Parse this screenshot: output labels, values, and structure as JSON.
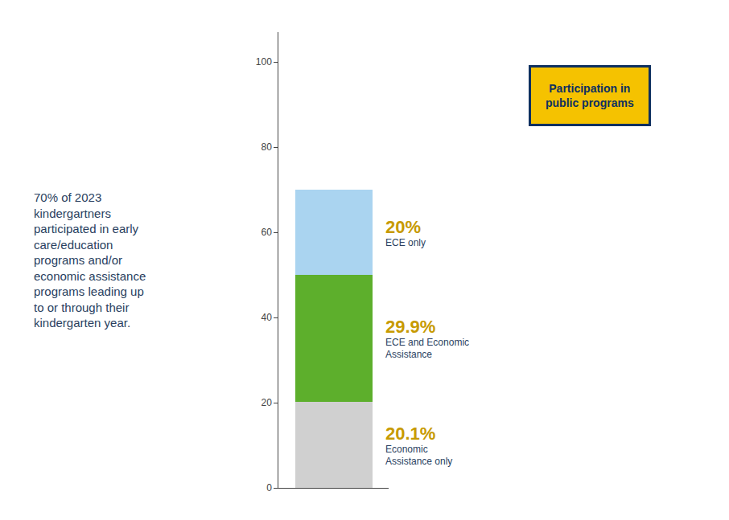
{
  "chart_data": {
    "type": "bar",
    "stacked": true,
    "categories": [
      null
    ],
    "series": [
      {
        "values": [
          20.1
        ],
        "value_labels": [
          "20.1%"
        ],
        "color": "#d0d0d0"
      },
      {
        "values": [
          29.9
        ],
        "value_labels": [
          "29.9%"
        ],
        "color": "#5daf2c"
      },
      {
        "values": [
          20.0
        ],
        "value_labels": [
          "20%"
        ],
        "color": "#aad4f0"
      }
    ],
    "data_labels": true,
    "series_labels": [
      "Economic\nAssistance only",
      "ECE and Economic\nAssistance",
      "ECE only"
    ],
    "ylim": [
      0,
      107
    ],
    "yticks": [
      0,
      20,
      40,
      60,
      80,
      100
    ],
    "tick_labels": "y",
    "grid": false,
    "annotations": [
      "70% of 2023\nkindergartners\nparticipated in early\ncare/education\nprograms and/or\neconomic assistance\nprograms leading up\nto or through their\nkindergarten year.",
      "Participation in\npublic programs"
    ]
  }
}
